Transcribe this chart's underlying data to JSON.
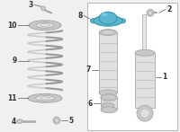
{
  "bg_color": "#f0f0f0",
  "box_facecolor": "#ffffff",
  "box_edgecolor": "#bbbbbb",
  "bracket_fill": "#5ab5d0",
  "bracket_stroke": "#3a95b0",
  "bracket_highlight": "#7ed4e8",
  "part_gray_light": "#e0e0e0",
  "part_gray_mid": "#c8c8c8",
  "part_gray_dark": "#a8a8a8",
  "line_color": "#555555",
  "label_color": "#333333"
}
